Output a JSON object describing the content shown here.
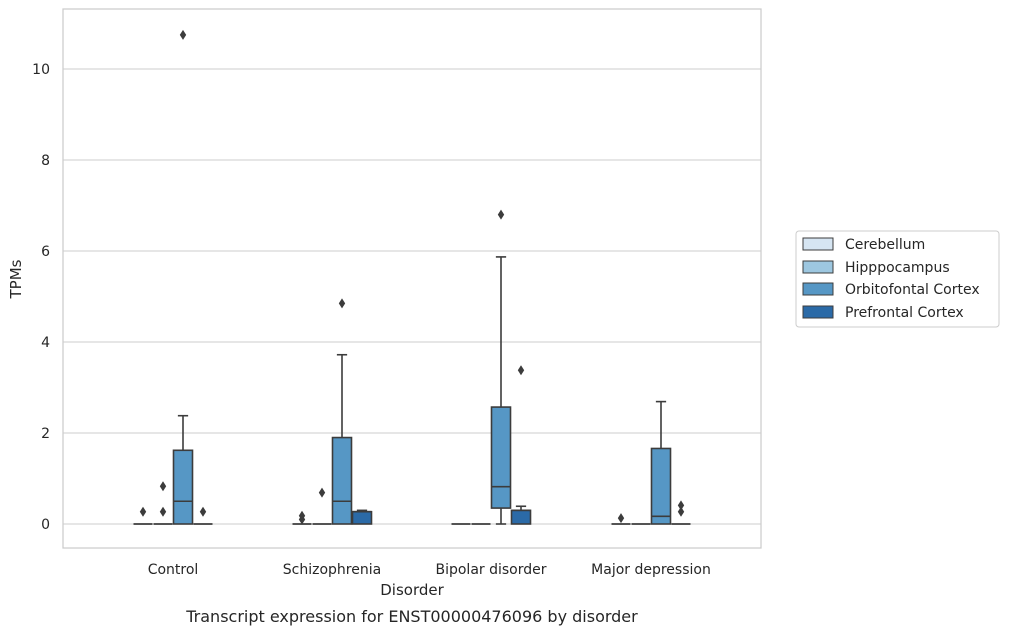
{
  "caption": "Transcript expression for ENST00000476096 by disorder",
  "chart_data": {
    "type": "box",
    "title": "",
    "xlabel": "Disorder",
    "ylabel": "TPMs",
    "ylim": [
      -0.5,
      11.3
    ],
    "yticks": [
      0,
      2,
      4,
      6,
      8,
      10
    ],
    "grid": "horizontal",
    "legend_position": "right",
    "categories": [
      "Control",
      "Schizophrenia",
      "Bipolar disorder",
      "Major depression"
    ],
    "series": [
      {
        "name": "Cerebellum",
        "color": "#d6e5f2",
        "boxes": [
          {
            "q1": 0,
            "median": 0,
            "q3": 0,
            "whislo": 0,
            "whishi": 0,
            "fliers": [
              0.27
            ]
          },
          {
            "q1": 0,
            "median": 0,
            "q3": 0,
            "whislo": 0,
            "whishi": 0,
            "fliers": [
              0.1,
              0.18
            ]
          },
          {
            "q1": 0,
            "median": 0,
            "q3": 0,
            "whislo": 0,
            "whishi": 0,
            "fliers": []
          },
          {
            "q1": 0,
            "median": 0,
            "q3": 0,
            "whislo": 0,
            "whishi": 0,
            "fliers": [
              0.13
            ]
          }
        ]
      },
      {
        "name": "Hipppocampus",
        "color": "#9dc7e0",
        "boxes": [
          {
            "q1": 0,
            "median": 0,
            "q3": 0,
            "whislo": 0,
            "whishi": 0,
            "fliers": [
              0.27,
              0.83
            ]
          },
          {
            "q1": 0,
            "median": 0,
            "q3": 0,
            "whislo": 0,
            "whishi": 0,
            "fliers": [
              0.69
            ]
          },
          {
            "q1": 0,
            "median": 0,
            "q3": 0,
            "whislo": 0,
            "whishi": 0,
            "fliers": []
          },
          {
            "q1": 0,
            "median": 0,
            "q3": 0,
            "whislo": 0,
            "whishi": 0,
            "fliers": []
          }
        ]
      },
      {
        "name": "Orbitofontal Cortex",
        "color": "#5697c5",
        "boxes": [
          {
            "q1": 0,
            "median": 0.5,
            "q3": 1.62,
            "whislo": 0,
            "whishi": 2.38,
            "fliers": [
              10.75
            ]
          },
          {
            "q1": 0,
            "median": 0.5,
            "q3": 1.9,
            "whislo": 0,
            "whishi": 3.72,
            "fliers": [
              4.85
            ]
          },
          {
            "q1": 0.35,
            "median": 0.82,
            "q3": 2.57,
            "whislo": 0,
            "whishi": 5.87,
            "fliers": [
              6.8
            ]
          },
          {
            "q1": 0,
            "median": 0.17,
            "q3": 1.66,
            "whislo": 0,
            "whishi": 2.69,
            "fliers": []
          }
        ]
      },
      {
        "name": "Prefrontal Cortex",
        "color": "#2b6aa7",
        "boxes": [
          {
            "q1": 0,
            "median": 0,
            "q3": 0,
            "whislo": 0,
            "whishi": 0,
            "fliers": [
              0.27
            ]
          },
          {
            "q1": 0,
            "median": 0.27,
            "q3": 0.27,
            "whislo": 0,
            "whishi": 0.3,
            "fliers": []
          },
          {
            "q1": 0,
            "median": 0.3,
            "q3": 0.3,
            "whislo": 0,
            "whishi": 0.39,
            "fliers": [
              3.38
            ]
          },
          {
            "q1": 0,
            "median": 0,
            "q3": 0,
            "whislo": 0,
            "whishi": 0,
            "fliers": [
              0.27,
              0.41
            ]
          }
        ]
      }
    ]
  }
}
